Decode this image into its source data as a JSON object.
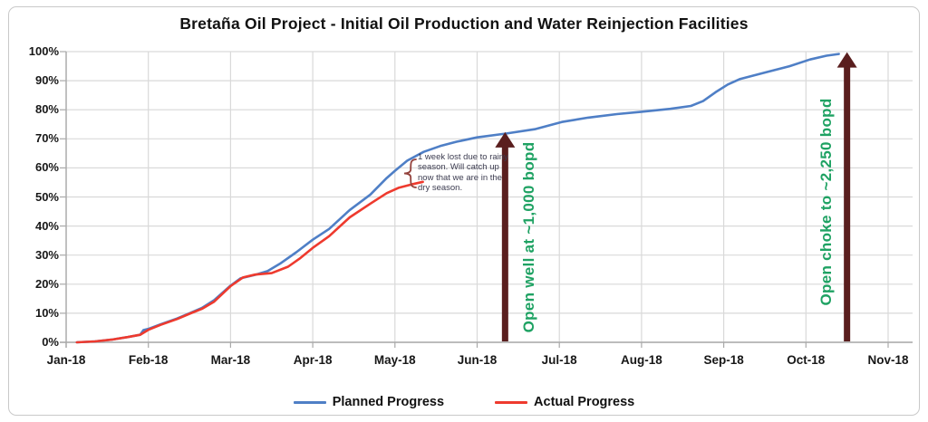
{
  "chart": {
    "title": "Bretaña Oil Project - Initial Oil Production and Water Reinjection Facilities"
  },
  "chart_data": {
    "type": "line",
    "title": "Bretaña Oil Project - Initial Oil Production and Water Reinjection Facilities",
    "x_axis": {
      "labels": [
        "Jan-18",
        "Feb-18",
        "Mar-18",
        "Apr-18",
        "May-18",
        "Jun-18",
        "Jul-18",
        "Aug-18",
        "Sep-18",
        "Oct-18",
        "Nov-18"
      ]
    },
    "y_axis": {
      "min": 0,
      "max": 100,
      "tick_values": [
        0,
        10,
        20,
        30,
        40,
        50,
        60,
        70,
        80,
        90,
        100
      ],
      "tick_labels": [
        "0%",
        "10%",
        "20%",
        "30%",
        "40%",
        "50%",
        "60%",
        "70%",
        "80%",
        "90%",
        "100%"
      ]
    },
    "grid": true,
    "legend_position": "bottom",
    "series": [
      {
        "name": "Planned Progress",
        "color": "#4f7fc6",
        "points_month_pct": [
          [
            0.13,
            0
          ],
          [
            0.35,
            0.3
          ],
          [
            0.55,
            0.9
          ],
          [
            0.75,
            1.8
          ],
          [
            0.9,
            2.6
          ],
          [
            0.94,
            4.2
          ],
          [
            1.0,
            4.6
          ],
          [
            1.15,
            6.2
          ],
          [
            1.35,
            8.2
          ],
          [
            1.5,
            10
          ],
          [
            1.65,
            11.8
          ],
          [
            1.8,
            14.5
          ],
          [
            2.0,
            19.5
          ],
          [
            2.12,
            22
          ],
          [
            2.3,
            23.2
          ],
          [
            2.45,
            24.5
          ],
          [
            2.6,
            27
          ],
          [
            2.8,
            31
          ],
          [
            3.0,
            35.3
          ],
          [
            3.2,
            39
          ],
          [
            3.45,
            45.5
          ],
          [
            3.7,
            50.8
          ],
          [
            3.9,
            56.5
          ],
          [
            4.0,
            59
          ],
          [
            4.15,
            62.5
          ],
          [
            4.35,
            65.5
          ],
          [
            4.55,
            67.5
          ],
          [
            4.75,
            69
          ],
          [
            5.0,
            70.5
          ],
          [
            5.35,
            71.8
          ],
          [
            5.7,
            73.3
          ],
          [
            6.03,
            75.8
          ],
          [
            6.35,
            77.3
          ],
          [
            6.7,
            78.5
          ],
          [
            7.0,
            79.3
          ],
          [
            7.35,
            80.3
          ],
          [
            7.6,
            81.3
          ],
          [
            7.75,
            83
          ],
          [
            7.9,
            86
          ],
          [
            8.05,
            88.7
          ],
          [
            8.2,
            90.6
          ],
          [
            8.5,
            92.8
          ],
          [
            8.8,
            95
          ],
          [
            9.05,
            97.3
          ],
          [
            9.25,
            98.6
          ],
          [
            9.4,
            99.2
          ]
        ]
      },
      {
        "name": "Actual Progress",
        "color": "#ee3a2e",
        "points_month_pct": [
          [
            0.13,
            0
          ],
          [
            0.35,
            0.3
          ],
          [
            0.55,
            0.9
          ],
          [
            0.75,
            1.8
          ],
          [
            0.9,
            2.6
          ],
          [
            1.0,
            4.3
          ],
          [
            1.15,
            6
          ],
          [
            1.35,
            8
          ],
          [
            1.5,
            9.8
          ],
          [
            1.65,
            11.5
          ],
          [
            1.8,
            14
          ],
          [
            2.0,
            19.3
          ],
          [
            2.15,
            22.3
          ],
          [
            2.3,
            23.3
          ],
          [
            2.5,
            23.8
          ],
          [
            2.7,
            26
          ],
          [
            2.85,
            29
          ],
          [
            3.0,
            32.5
          ],
          [
            3.2,
            36.5
          ],
          [
            3.45,
            43
          ],
          [
            3.7,
            47.7
          ],
          [
            3.9,
            51.3
          ],
          [
            4.05,
            53.2
          ],
          [
            4.2,
            54.3
          ],
          [
            4.34,
            55.2
          ]
        ]
      }
    ],
    "annotations": {
      "note": {
        "text": "1 week lost due to rainy season. Will catch up now that we are in the dry season.",
        "color": "#3c3c50",
        "brace_color": "#94433d"
      },
      "arrows": [
        {
          "label": "Open well at ~1,000 bopd",
          "x_month": 5.34,
          "top_pct": 72.3,
          "label_side": "right",
          "arrow_color": "#5a1e1e",
          "label_color": "#1fa263"
        },
        {
          "label": "Open choke to ~2,250 bopd",
          "x_month": 9.5,
          "top_pct": 99.8,
          "label_side": "left",
          "arrow_color": "#5a1e1e",
          "label_color": "#1fa263"
        }
      ]
    }
  }
}
